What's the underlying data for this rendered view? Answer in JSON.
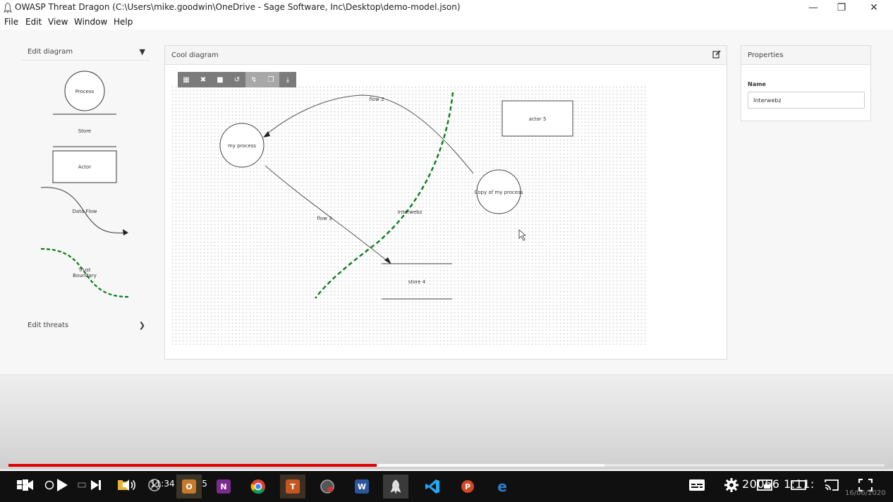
{
  "window": {
    "title": "OWASP Threat Dragon (C:\\Users\\mike.goodwin\\OneDrive - Sage Software, Inc\\Desktop\\demo-model.json)",
    "minimize": "—",
    "restore": "❐",
    "close": "✕"
  },
  "menu": [
    "File",
    "Edit",
    "View",
    "Window",
    "Help"
  ],
  "palette": {
    "edit_diagram": "Edit diagram",
    "edit_threats": "Edit threats",
    "shapes": {
      "process": "Process",
      "store": "Store",
      "actor": "Actor",
      "flow_line1": "Data Flow",
      "boundary_line1": "Trust",
      "boundary_line2": "Boundary"
    }
  },
  "diagram": {
    "title": "Cool diagram",
    "elements": {
      "my_process": "my process",
      "copy_process": "Copy of my process",
      "actor5": "actor 5",
      "store4": "store 4",
      "flow2": "flow 2",
      "flow3": "flow 3",
      "boundary": "Interwebz"
    }
  },
  "properties": {
    "title": "Properties",
    "name_label": "Name",
    "name_value": "Interwebz"
  },
  "player": {
    "time": "11:34 / 27:45",
    "played_fraction": 0.42,
    "buffered_fraction": 0.68,
    "clock": "20​​06​​6 1​:11:​",
    "date": "16/06/2020"
  },
  "colors": {
    "boundary": "#0a7d1a",
    "progress": "#e00000"
  }
}
